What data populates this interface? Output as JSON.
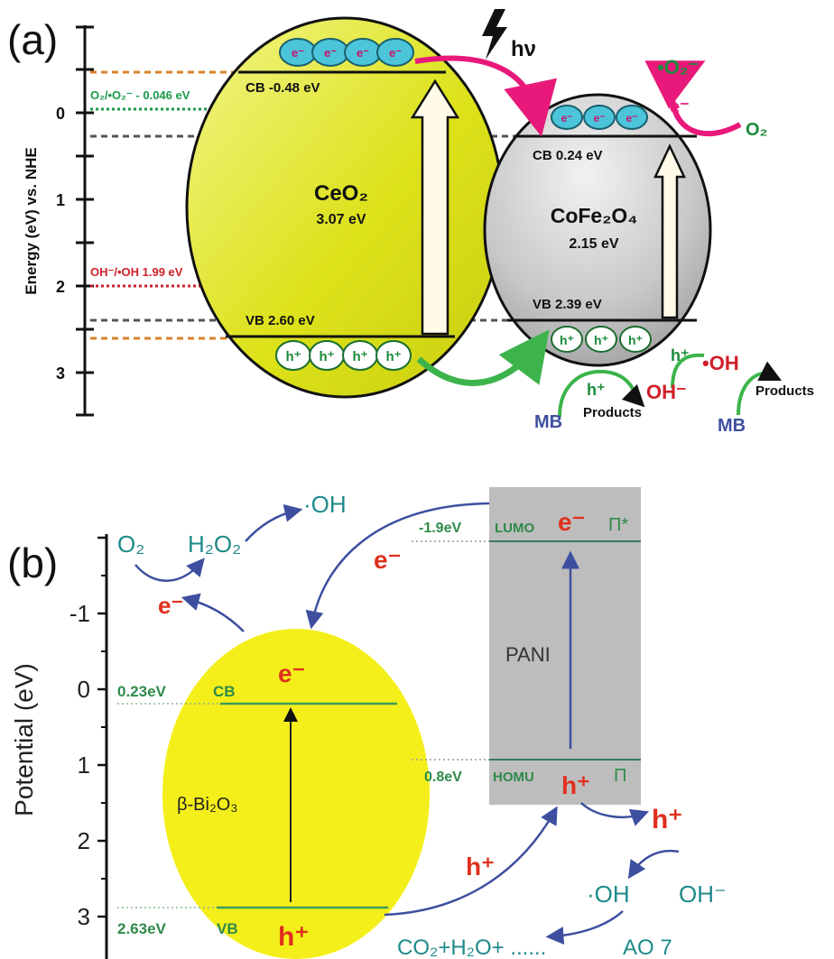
{
  "panel_a": {
    "label": "(a)",
    "axis_title": "Energy (eV) vs. NHE",
    "ticks": [
      "0",
      "1",
      "2",
      "3"
    ],
    "hv": "hν",
    "ref_o2": "O₂/•O₂⁻ - 0.046 eV",
    "ref_oh": "OH⁻/•OH 1.99 eV",
    "ceo2": {
      "name": "CeO₂",
      "gap": "3.07 eV",
      "cb": "CB  -0.48 eV",
      "vb": "VB  2.60 eV"
    },
    "cofe": {
      "name": "CoFe₂O₄",
      "gap": "2.15 eV",
      "cb": "CB  0.24 eV",
      "vb": "VB  2.39 eV"
    },
    "electron": "e⁻",
    "hole": "h⁺",
    "superoxide": "•O₂⁻",
    "o2": "O₂",
    "e_transfer": "e⁻",
    "h_plus": "h⁺",
    "oh_minus": "OH⁻",
    "oh_radical": "•OH",
    "mb": "MB",
    "products": "Products"
  },
  "panel_b": {
    "label": "(b)",
    "axis_title": "Potential (eV)",
    "ticks": [
      "-1",
      "0",
      "1",
      "2",
      "3"
    ],
    "bi": {
      "name": "β-Bi₂O₃",
      "cb_val": "0.23eV",
      "cb": "CB",
      "vb_val": "2.63eV",
      "vb": "VB",
      "e": "e⁻",
      "h": "h⁺"
    },
    "pani": {
      "name": "PANI",
      "lumo_val": "-1.9eV",
      "lumo": "LUMO",
      "homo_val": "0.8eV",
      "homo": "HOMU",
      "e": "e⁻",
      "h": "h⁺",
      "pi_star": "Π*",
      "pi": "Π"
    },
    "o2": "O₂",
    "h2o2": "H₂O₂",
    "oh_top": "·OH",
    "e_left": "e⁻",
    "e_transfer": "e⁻",
    "h_transfer": "h⁺",
    "h_right": "h⁺",
    "oh_radical": "·OH",
    "oh_minus": "OH⁻",
    "co2": "CO₂+H₂O+ ......",
    "ao7": "AO 7"
  }
}
